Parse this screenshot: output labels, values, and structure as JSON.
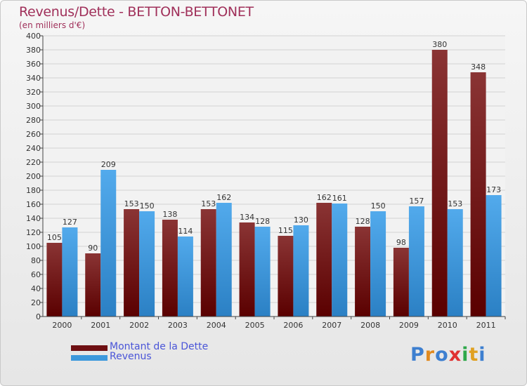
{
  "title": "Revenus/Dette - BETTON-BETTONET",
  "subtitle": "(en milliers d'€)",
  "logo": "Proxiti",
  "colors": {
    "debt": "#6e0f12",
    "revenue": "#3d98dc",
    "title": "#a0305a",
    "legend_text": "#4a55d8"
  },
  "legend": [
    {
      "label": "Montant de la Dette",
      "color": "#6e0f12"
    },
    {
      "label": "Revenus",
      "color": "#3d98dc"
    }
  ],
  "chart_data": {
    "type": "bar",
    "title": "Revenus/Dette - BETTON-BETTONET",
    "ylabel": "(en milliers d'€)",
    "xlabel": "",
    "categories": [
      "2000",
      "2001",
      "2002",
      "2003",
      "2004",
      "2005",
      "2006",
      "2007",
      "2008",
      "2009",
      "2010",
      "2011"
    ],
    "series": [
      {
        "name": "Montant de la Dette",
        "values": [
          105,
          90,
          153,
          138,
          153,
          134,
          115,
          162,
          128,
          98,
          380,
          348
        ]
      },
      {
        "name": "Revenus",
        "values": [
          127,
          209,
          150,
          114,
          162,
          128,
          130,
          161,
          150,
          157,
          153,
          173
        ]
      }
    ],
    "ylim": [
      0,
      400
    ],
    "ytick_step": 20,
    "grid": true,
    "legend_position": "bottom-left"
  }
}
